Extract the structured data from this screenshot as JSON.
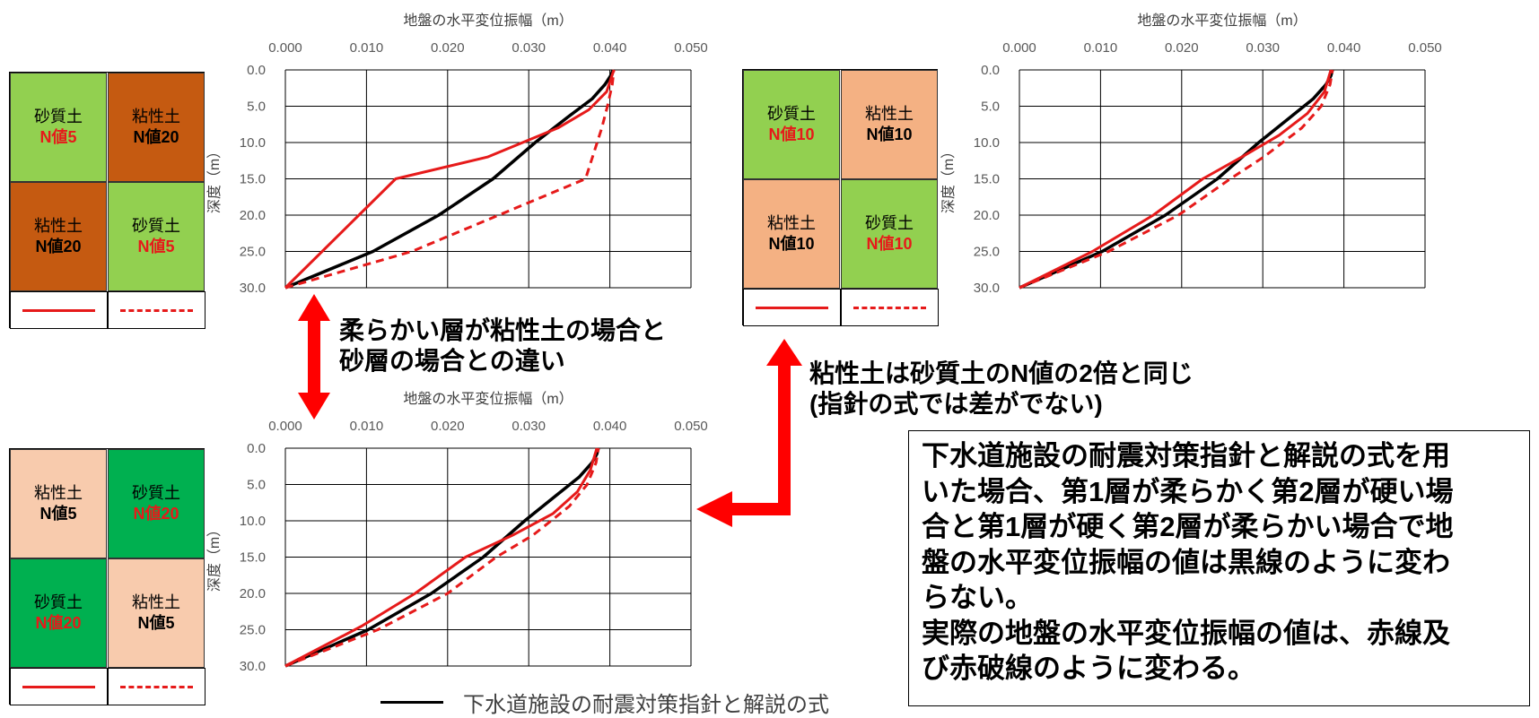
{
  "chart_data": [
    {
      "type": "line",
      "title": "地盤の水平変位振幅（m）",
      "xlabel": "地盤の水平変位振幅（m）",
      "ylabel": "深度（m）",
      "xlim": [
        0,
        0.05
      ],
      "ylim": [
        0,
        30
      ],
      "y_inverted": true,
      "x_axis_position": "top",
      "xticks": [
        "0.000",
        "0.010",
        "0.020",
        "0.030",
        "0.040",
        "0.050"
      ],
      "yticks": [
        "0.0",
        "5.0",
        "10.0",
        "15.0",
        "20.0",
        "25.0",
        "30.0"
      ],
      "grid": true,
      "series": [
        {
          "style": "black",
          "x": [
            0,
            0.0108,
            0.0189,
            0.0256,
            0.0308,
            0.0348,
            0.0378,
            0.0394,
            0.0401,
            0.0404
          ],
          "y": [
            30,
            25,
            20,
            15,
            10,
            6.5,
            4,
            2,
            0.8,
            0
          ]
        },
        {
          "style": "red-solid",
          "x": [
            0,
            0.0136,
            0.0249,
            0.0336,
            0.0374,
            0.0396,
            0.0405
          ],
          "y": [
            30,
            15,
            12,
            8,
            5.5,
            3,
            0
          ]
        },
        {
          "style": "red-dashed",
          "x": [
            0,
            0.0156,
            0.037,
            0.039,
            0.0397,
            0.0403,
            0.0405
          ],
          "y": [
            30,
            25,
            15,
            8,
            5,
            2,
            0
          ]
        }
      ]
    },
    {
      "type": "line",
      "title": "地盤の水平変位振幅（m）",
      "xlabel": "地盤の水平変位振幅（m）",
      "ylabel": "深度（m）",
      "xlim": [
        0,
        0.05
      ],
      "ylim": [
        0,
        30
      ],
      "y_inverted": true,
      "x_axis_position": "top",
      "xticks": [
        "0.000",
        "0.010",
        "0.020",
        "0.030",
        "0.040",
        "0.050"
      ],
      "yticks": [
        "0.0",
        "5.0",
        "10.0",
        "15.0",
        "20.0",
        "25.0",
        "30.0"
      ],
      "grid": true,
      "series": [
        {
          "style": "black",
          "x": [
            0,
            0.0102,
            0.018,
            0.0244,
            0.0295,
            0.0334,
            0.0362,
            0.0378,
            0.0384,
            0.0386
          ],
          "y": [
            30,
            25,
            20,
            15,
            10,
            6.5,
            4,
            2,
            0.8,
            0
          ]
        },
        {
          "style": "red-solid",
          "x": [
            0,
            0.009,
            0.0165,
            0.0226,
            0.0274,
            0.032,
            0.0355,
            0.0376,
            0.0384
          ],
          "y": [
            30,
            25,
            20,
            15,
            12,
            9,
            6,
            3,
            0
          ]
        },
        {
          "style": "red-dashed",
          "x": [
            0,
            0.011,
            0.0196,
            0.026,
            0.0301,
            0.0348,
            0.0372,
            0.0383,
            0.0386
          ],
          "y": [
            30,
            25,
            20,
            15,
            12,
            8,
            5,
            2,
            0
          ]
        }
      ]
    },
    {
      "type": "line",
      "title": "地盤の水平変位振幅（m）",
      "xlabel": "地盤の水平変位振幅（m）",
      "ylabel": "深度（m）",
      "xlim": [
        0,
        0.05
      ],
      "ylim": [
        0,
        30
      ],
      "y_inverted": true,
      "x_axis_position": "top",
      "xticks": [
        "0.000",
        "0.010",
        "0.020",
        "0.030",
        "0.040",
        "0.050"
      ],
      "yticks": [
        "0.0",
        "5.0",
        "10.0",
        "15.0",
        "20.0",
        "25.0",
        "30.0"
      ],
      "grid": true,
      "series": [
        {
          "style": "black",
          "x": [
            0,
            0.0102,
            0.018,
            0.0244,
            0.0295,
            0.0334,
            0.0362,
            0.0378,
            0.0384,
            0.0386
          ],
          "y": [
            30,
            25,
            20,
            15,
            10,
            6.5,
            4,
            2,
            0.8,
            0
          ]
        },
        {
          "style": "red-solid",
          "x": [
            0,
            0.0094,
            0.016,
            0.0222,
            0.028,
            0.033,
            0.036,
            0.0376,
            0.0384
          ],
          "y": [
            30,
            24.5,
            20,
            15,
            12,
            9,
            6,
            3,
            0
          ]
        },
        {
          "style": "red-dashed",
          "x": [
            0,
            0.0114,
            0.02,
            0.026,
            0.0305,
            0.035,
            0.0372,
            0.0383,
            0.0386
          ],
          "y": [
            30,
            25,
            20,
            15,
            12,
            8,
            5,
            2,
            0
          ]
        }
      ]
    }
  ],
  "colors": {
    "sand": "#92d050",
    "clay_dark": "#c55a11",
    "clay_light": "#f4b183",
    "clay_pale": "#f8cbad",
    "sand_dark": "#00b050",
    "red": "#e61a1a",
    "black": "#000000"
  },
  "soil_panels": [
    {
      "cells": [
        {
          "name": "砂質土",
          "nvalue": "N値5",
          "nvalue_color": "red",
          "bg": "sand"
        },
        {
          "name": "粘性土",
          "nvalue": "N値20",
          "nvalue_color": "black",
          "bg": "clay_dark"
        },
        {
          "name": "粘性土",
          "nvalue": "N値20",
          "nvalue_color": "black",
          "bg": "clay_dark"
        },
        {
          "name": "砂質土",
          "nvalue": "N値5",
          "nvalue_color": "red",
          "bg": "sand"
        }
      ]
    },
    {
      "cells": [
        {
          "name": "砂質土",
          "nvalue": "N値10",
          "nvalue_color": "red",
          "bg": "sand"
        },
        {
          "name": "粘性土",
          "nvalue": "N値10",
          "nvalue_color": "black",
          "bg": "clay_light"
        },
        {
          "name": "粘性土",
          "nvalue": "N値10",
          "nvalue_color": "black",
          "bg": "clay_light"
        },
        {
          "name": "砂質土",
          "nvalue": "N値10",
          "nvalue_color": "red",
          "bg": "sand"
        }
      ]
    },
    {
      "cells": [
        {
          "name": "粘性土",
          "nvalue": "N値5",
          "nvalue_color": "black",
          "bg": "clay_pale"
        },
        {
          "name": "砂質土",
          "nvalue": "N値20",
          "nvalue_color": "red",
          "bg": "sand_dark"
        },
        {
          "name": "砂質土",
          "nvalue": "N値20",
          "nvalue_color": "red",
          "bg": "sand_dark"
        },
        {
          "name": "粘性土",
          "nvalue": "N値5",
          "nvalue_color": "black",
          "bg": "clay_pale"
        }
      ]
    }
  ],
  "annotations": {
    "soft_layer_line1": "柔らかい層が粘性土の場合と",
    "soft_layer_line2": "砂層の場合との違い",
    "clay_double_line1": "粘性土は砂質土のN値の2倍と同じ",
    "clay_double_line2": "(指針の式では差がでない)",
    "bottom_legend": "下水道施設の耐震対策指針と解説の式"
  },
  "note_lines": [
    "下水道施設の耐震対策指針と解説の式を用",
    "いた場合、第1層が柔らかく第2層が硬い場",
    "合と第1層が硬く第2層が柔らかい場合で地",
    "盤の水平変位振幅の値は黒線のように変わ",
    "らない。",
    "実際の地盤の水平変位振幅の値は、赤線及",
    "び赤破線のように変わる。"
  ]
}
